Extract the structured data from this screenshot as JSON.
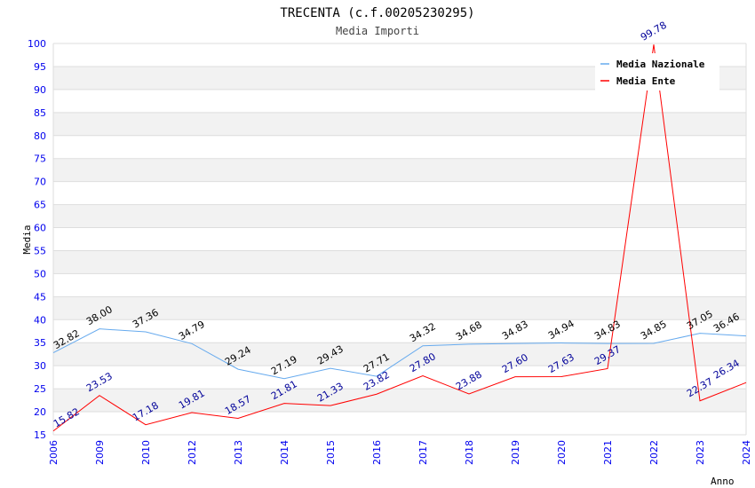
{
  "chart_data": {
    "type": "line",
    "title": "TRECENTA (c.f.00205230295)",
    "subtitle": "Media Importi",
    "xlabel": "Anno",
    "ylabel": "Media",
    "ylim": [
      15,
      100
    ],
    "yticks": [
      15,
      20,
      25,
      30,
      35,
      40,
      45,
      50,
      55,
      60,
      65,
      70,
      75,
      80,
      85,
      90,
      95,
      100
    ],
    "categories": [
      "2006",
      "2009",
      "2010",
      "2012",
      "2013",
      "2014",
      "2015",
      "2016",
      "2017",
      "2018",
      "2019",
      "2020",
      "2021",
      "2022",
      "2023",
      "2024"
    ],
    "legend_position": "top-right",
    "series": [
      {
        "name": "Media Nazionale",
        "color": "#66aaee",
        "label_color": "#000000",
        "values": [
          32.82,
          38.0,
          37.36,
          34.79,
          29.24,
          27.19,
          29.43,
          27.71,
          34.32,
          34.68,
          34.83,
          34.94,
          34.83,
          34.85,
          37.05,
          36.46
        ]
      },
      {
        "name": "Media Ente",
        "color": "#ff0000",
        "label_color": "#000099",
        "values": [
          15.82,
          23.53,
          17.18,
          19.81,
          18.57,
          21.81,
          21.33,
          23.82,
          27.8,
          23.88,
          27.6,
          27.63,
          29.37,
          99.78,
          22.37,
          26.34
        ]
      }
    ]
  }
}
